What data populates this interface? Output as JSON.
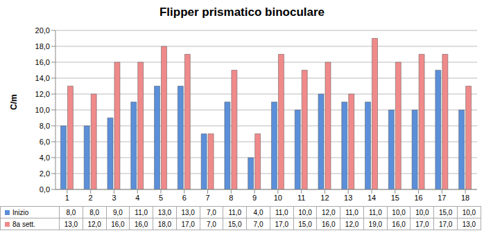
{
  "chart_data": {
    "type": "bar",
    "title": "Flipper prismatico binoculare",
    "y_label": "C/m",
    "categories": [
      "1",
      "2",
      "3",
      "4",
      "5",
      "6",
      "7",
      "8",
      "9",
      "10",
      "11",
      "12",
      "13",
      "14",
      "15",
      "16",
      "17",
      "18"
    ],
    "series": [
      {
        "name": "Inizio",
        "color": "#5b8fd9",
        "values": [
          8,
          8,
          9,
          11,
          13,
          13,
          7,
          11,
          4,
          11,
          10,
          12,
          11,
          11,
          10,
          10,
          15,
          10
        ],
        "value_labels": [
          "8,0",
          "8,0",
          "9,0",
          "11,0",
          "13,0",
          "13,0",
          "7,0",
          "11,0",
          "4,0",
          "11,0",
          "10,0",
          "12,0",
          "11,0",
          "11,0",
          "10,0",
          "10,0",
          "15,0",
          "10,0"
        ]
      },
      {
        "name": "8a sett.",
        "color": "#f08a8a",
        "values": [
          13,
          12,
          16,
          16,
          18,
          17,
          7,
          15,
          7,
          17,
          15,
          16,
          12,
          19,
          16,
          17,
          17,
          13
        ],
        "value_labels": [
          "13,0",
          "12,0",
          "16,0",
          "16,0",
          "18,0",
          "17,0",
          "7,0",
          "15,0",
          "7,0",
          "17,0",
          "15,0",
          "16,0",
          "12,0",
          "19,0",
          "16,0",
          "17,0",
          "17,0",
          "13,0"
        ]
      }
    ],
    "ylim": [
      0,
      20
    ],
    "yticks": [
      {
        "value": 0,
        "label": "0,0"
      },
      {
        "value": 2,
        "label": "2,0"
      },
      {
        "value": 4,
        "label": "4,0"
      },
      {
        "value": 6,
        "label": "6,0"
      },
      {
        "value": 8,
        "label": "8,0"
      },
      {
        "value": 10,
        "label": "10,0"
      },
      {
        "value": 12,
        "label": "12,0"
      },
      {
        "value": 14,
        "label": "14,0"
      },
      {
        "value": 16,
        "label": "16,0"
      },
      {
        "value": 18,
        "label": "18,0"
      },
      {
        "value": 20,
        "label": "20,0"
      }
    ],
    "grid": true
  }
}
